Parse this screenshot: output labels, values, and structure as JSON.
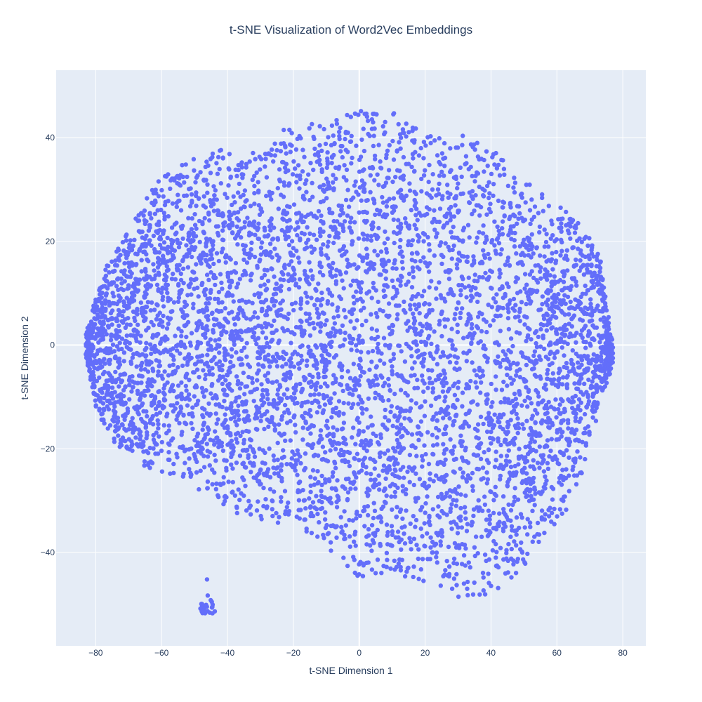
{
  "chart_data": {
    "type": "scatter",
    "title": "t-SNE Visualization of Word2Vec Embeddings",
    "xlabel": "t-SNE Dimension 1",
    "ylabel": "t-SNE Dimension 2",
    "xlim": [
      -92,
      87
    ],
    "ylim": [
      -58,
      53
    ],
    "x_ticks": [
      -80,
      -60,
      -40,
      -20,
      0,
      20,
      40,
      60,
      80
    ],
    "y_ticks": [
      -40,
      -20,
      0,
      20,
      40
    ],
    "grid": true,
    "legend": "none",
    "marker_color": "#636efa",
    "plot_background": "#e5ecf6",
    "grid_color": "#ffffff",
    "series": [
      {
        "points_note_main_cloud": {
          "center": [
            -3,
            -1
          ],
          "x_extent": [
            -83,
            77
          ],
          "y_extent": [
            -50,
            47
          ],
          "approx_count": 6000
        },
        "points_note_outlier_cluster": {
          "center": [
            -46,
            -50.5
          ],
          "x_extent": [
            -49,
            -44
          ],
          "y_extent": [
            -52,
            -45
          ],
          "approx_count": 25
        }
      }
    ]
  }
}
